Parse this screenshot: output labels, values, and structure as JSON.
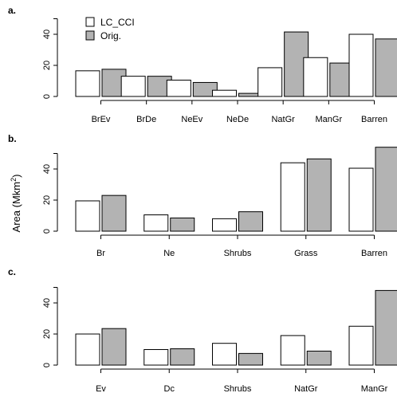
{
  "ylabel": "Area (Mkm",
  "ylabel_sup": "2",
  "ylabel_close": ")",
  "legend": [
    {
      "label": "LC_CCI",
      "color": "#ffffff"
    },
    {
      "label": "Orig.",
      "color": "#b3b3b3"
    }
  ],
  "chart_data": [
    {
      "type": "bar",
      "panel_label": "a.",
      "categories": [
        "BrEv",
        "BrDe",
        "NeEv",
        "NeDe",
        "NatGr",
        "ManGr",
        "Barren"
      ],
      "series": [
        {
          "name": "LC_CCI",
          "values": [
            16.5,
            13,
            10.5,
            4,
            18.5,
            25,
            40
          ]
        },
        {
          "name": "Orig.",
          "values": [
            17.5,
            13,
            9,
            2,
            41.5,
            21.5,
            37
          ]
        }
      ],
      "yticks": [
        0,
        20,
        40
      ],
      "ylim": [
        0,
        50
      ],
      "legend_position": "top-left"
    },
    {
      "type": "bar",
      "panel_label": "b.",
      "categories": [
        "Br",
        "Ne",
        "Shrubs",
        "Grass",
        "Barren"
      ],
      "series": [
        {
          "name": "LC_CCI",
          "values": [
            19.5,
            10.5,
            8,
            44,
            40.5
          ]
        },
        {
          "name": "Orig.",
          "values": [
            23,
            8.5,
            12.5,
            46.5,
            54
          ]
        }
      ],
      "yticks": [
        0,
        20,
        40
      ],
      "ylim": [
        0,
        50
      ]
    },
    {
      "type": "bar",
      "panel_label": "c.",
      "categories": [
        "Ev",
        "Dc",
        "Shrubs",
        "NatGr",
        "ManGr"
      ],
      "series": [
        {
          "name": "LC_CCI",
          "values": [
            20,
            10,
            14,
            19,
            25
          ]
        },
        {
          "name": "Orig.",
          "values": [
            23.5,
            10.5,
            7.5,
            9,
            48
          ]
        }
      ],
      "yticks": [
        0,
        20,
        40
      ],
      "ylim": [
        0,
        50
      ]
    }
  ]
}
